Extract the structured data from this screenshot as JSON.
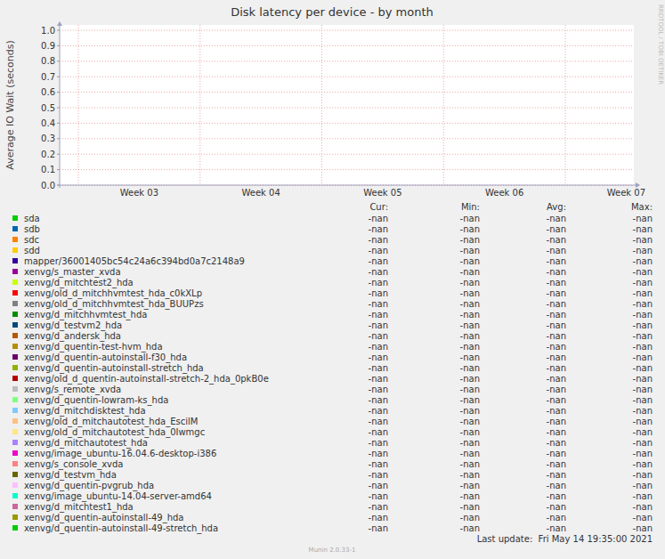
{
  "chart_data": {
    "type": "line",
    "title": "Disk latency per device - by month",
    "y_label": "Average IO Wait (seconds)",
    "watermark": "RRDTOOL / TOBI OETIKER",
    "footer": "Munin 2.0.33-1",
    "last_update": "Last update:  Fri May 14 19:35:00 2021",
    "stat_headers": [
      "Cur:",
      "Min:",
      "Avg:",
      "Max:"
    ],
    "categories": [
      "Week 03",
      "Week 04",
      "Week 05",
      "Week 06",
      "Week 07"
    ],
    "ylim": [
      0,
      1
    ],
    "yticks": [
      {
        "value": 0,
        "label": "0.0"
      },
      0.1,
      0.2,
      0.3,
      0.4,
      0.5,
      0.6,
      0.7,
      0.8,
      0.9,
      {
        "value": 1,
        "label": "1.0"
      }
    ],
    "grid": true,
    "series": [
      {
        "name": "sda",
        "color": "#00cc00",
        "values": [
          null,
          null,
          null,
          null,
          null
        ],
        "stats": [
          "-nan",
          "-nan",
          "-nan",
          "-nan"
        ]
      },
      {
        "name": "sdb",
        "color": "#0066b3",
        "values": [
          null,
          null,
          null,
          null,
          null
        ],
        "stats": [
          "-nan",
          "-nan",
          "-nan",
          "-nan"
        ]
      },
      {
        "name": "sdc",
        "color": "#ff8000",
        "values": [
          null,
          null,
          null,
          null,
          null
        ],
        "stats": [
          "-nan",
          "-nan",
          "-nan",
          "-nan"
        ]
      },
      {
        "name": "sdd",
        "color": "#ffcc00",
        "values": [
          null,
          null,
          null,
          null,
          null
        ],
        "stats": [
          "-nan",
          "-nan",
          "-nan",
          "-nan"
        ]
      },
      {
        "name": "mapper/36001405bc54c24a6c394bd0a7c2148a9",
        "color": "#330099",
        "values": [
          null,
          null,
          null,
          null,
          null
        ],
        "stats": [
          "-nan",
          "-nan",
          "-nan",
          "-nan"
        ]
      },
      {
        "name": "xenvg/s_master_xvda",
        "color": "#990099",
        "values": [
          null,
          null,
          null,
          null,
          null
        ],
        "stats": [
          "-nan",
          "-nan",
          "-nan",
          "-nan"
        ]
      },
      {
        "name": "xenvg/d_mitchtest2_hda",
        "color": "#ccff00",
        "values": [
          null,
          null,
          null,
          null,
          null
        ],
        "stats": [
          "-nan",
          "-nan",
          "-nan",
          "-nan"
        ]
      },
      {
        "name": "xenvg/old_d_mitchhvmtest_hda_c0kXLp",
        "color": "#ff0000",
        "values": [
          null,
          null,
          null,
          null,
          null
        ],
        "stats": [
          "-nan",
          "-nan",
          "-nan",
          "-nan"
        ]
      },
      {
        "name": "xenvg/old_d_mitchhvmtest_hda_BUUPzs",
        "color": "#808080",
        "values": [
          null,
          null,
          null,
          null,
          null
        ],
        "stats": [
          "-nan",
          "-nan",
          "-nan",
          "-nan"
        ]
      },
      {
        "name": "xenvg/d_mitchhvmtest_hda",
        "color": "#008f00",
        "values": [
          null,
          null,
          null,
          null,
          null
        ],
        "stats": [
          "-nan",
          "-nan",
          "-nan",
          "-nan"
        ]
      },
      {
        "name": "xenvg/d_testvm2_hda",
        "color": "#00487d",
        "values": [
          null,
          null,
          null,
          null,
          null
        ],
        "stats": [
          "-nan",
          "-nan",
          "-nan",
          "-nan"
        ]
      },
      {
        "name": "xenvg/d_andersk_hda",
        "color": "#b35a00",
        "values": [
          null,
          null,
          null,
          null,
          null
        ],
        "stats": [
          "-nan",
          "-nan",
          "-nan",
          "-nan"
        ]
      },
      {
        "name": "xenvg/d_quentin-test-hvm_hda",
        "color": "#b38f00",
        "values": [
          null,
          null,
          null,
          null,
          null
        ],
        "stats": [
          "-nan",
          "-nan",
          "-nan",
          "-nan"
        ]
      },
      {
        "name": "xenvg/d_quentin-autoinstall-f30_hda",
        "color": "#6b006b",
        "values": [
          null,
          null,
          null,
          null,
          null
        ],
        "stats": [
          "-nan",
          "-nan",
          "-nan",
          "-nan"
        ]
      },
      {
        "name": "xenvg/d_quentin-autoinstall-stretch_hda",
        "color": "#8fb300",
        "values": [
          null,
          null,
          null,
          null,
          null
        ],
        "stats": [
          "-nan",
          "-nan",
          "-nan",
          "-nan"
        ]
      },
      {
        "name": "xenvg/old_d_quentin-autoinstall-stretch-2_hda_0pkB0e",
        "color": "#b30000",
        "values": [
          null,
          null,
          null,
          null,
          null
        ],
        "stats": [
          "-nan",
          "-nan",
          "-nan",
          "-nan"
        ]
      },
      {
        "name": "xenvg/s_remote_xvda",
        "color": "#bebebe",
        "values": [
          null,
          null,
          null,
          null,
          null
        ],
        "stats": [
          "-nan",
          "-nan",
          "-nan",
          "-nan"
        ]
      },
      {
        "name": "xenvg/d_quentin-lowram-ks_hda",
        "color": "#80ff80",
        "values": [
          null,
          null,
          null,
          null,
          null
        ],
        "stats": [
          "-nan",
          "-nan",
          "-nan",
          "-nan"
        ]
      },
      {
        "name": "xenvg/d_mitchdisktest_hda",
        "color": "#80c9ff",
        "values": [
          null,
          null,
          null,
          null,
          null
        ],
        "stats": [
          "-nan",
          "-nan",
          "-nan",
          "-nan"
        ]
      },
      {
        "name": "xenvg/old_d_mitchautotest_hda_EscilM",
        "color": "#ffc080",
        "values": [
          null,
          null,
          null,
          null,
          null
        ],
        "stats": [
          "-nan",
          "-nan",
          "-nan",
          "-nan"
        ]
      },
      {
        "name": "xenvg/old_d_mitchautotest_hda_0Iwmgc",
        "color": "#ffe680",
        "values": [
          null,
          null,
          null,
          null,
          null
        ],
        "stats": [
          "-nan",
          "-nan",
          "-nan",
          "-nan"
        ]
      },
      {
        "name": "xenvg/d_mitchautotest_hda",
        "color": "#aa80ff",
        "values": [
          null,
          null,
          null,
          null,
          null
        ],
        "stats": [
          "-nan",
          "-nan",
          "-nan",
          "-nan"
        ]
      },
      {
        "name": "xenvg/image_ubuntu-16.04.6-desktop-i386",
        "color": "#ee00cc",
        "values": [
          null,
          null,
          null,
          null,
          null
        ],
        "stats": [
          "-nan",
          "-nan",
          "-nan",
          "-nan"
        ]
      },
      {
        "name": "xenvg/s_console_xvda",
        "color": "#ff8080",
        "values": [
          null,
          null,
          null,
          null,
          null
        ],
        "stats": [
          "-nan",
          "-nan",
          "-nan",
          "-nan"
        ]
      },
      {
        "name": "xenvg/d_testvm_hda",
        "color": "#666600",
        "values": [
          null,
          null,
          null,
          null,
          null
        ],
        "stats": [
          "-nan",
          "-nan",
          "-nan",
          "-nan"
        ]
      },
      {
        "name": "xenvg/d_quentin-pvgrub_hda",
        "color": "#ffbfff",
        "values": [
          null,
          null,
          null,
          null,
          null
        ],
        "stats": [
          "-nan",
          "-nan",
          "-nan",
          "-nan"
        ]
      },
      {
        "name": "xenvg/image_ubuntu-14.04-server-amd64",
        "color": "#00ffcc",
        "values": [
          null,
          null,
          null,
          null,
          null
        ],
        "stats": [
          "-nan",
          "-nan",
          "-nan",
          "-nan"
        ]
      },
      {
        "name": "xenvg/d_mitchtest1_hda",
        "color": "#cc6699",
        "values": [
          null,
          null,
          null,
          null,
          null
        ],
        "stats": [
          "-nan",
          "-nan",
          "-nan",
          "-nan"
        ]
      },
      {
        "name": "xenvg/d_quentin-autoinstall-49_hda",
        "color": "#999900",
        "values": [
          null,
          null,
          null,
          null,
          null
        ],
        "stats": [
          "-nan",
          "-nan",
          "-nan",
          "-nan"
        ]
      },
      {
        "name": "xenvg/d_quentin-autoinstall-49-stretch_hda",
        "color": "#00cc00",
        "values": [
          null,
          null,
          null,
          null,
          null
        ],
        "stats": [
          "-nan",
          "-nan",
          "-nan",
          "-nan"
        ]
      }
    ]
  }
}
